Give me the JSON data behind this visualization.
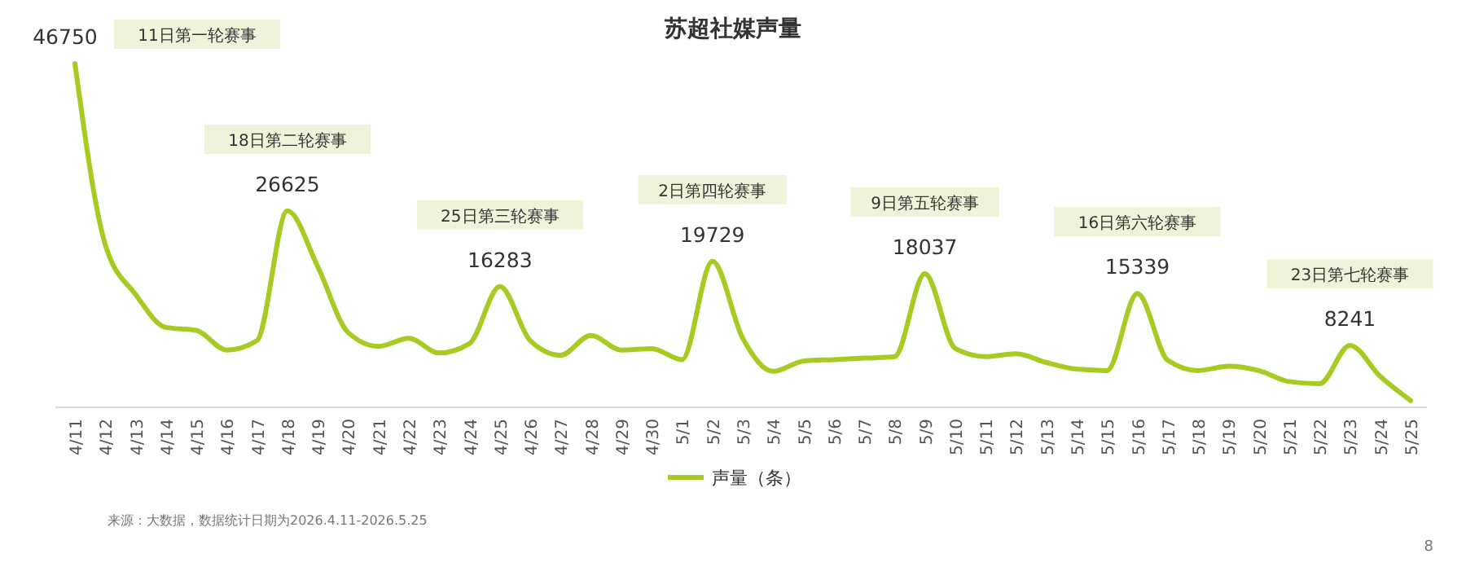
{
  "chart_data": {
    "type": "line",
    "title": "苏超社媒声量",
    "categories": [
      "4/11",
      "4/12",
      "4/13",
      "4/14",
      "4/15",
      "4/16",
      "4/17",
      "4/18",
      "4/19",
      "4/20",
      "4/21",
      "4/22",
      "4/23",
      "4/24",
      "4/25",
      "4/26",
      "4/27",
      "4/28",
      "4/29",
      "4/30",
      "5/1",
      "5/2",
      "5/3",
      "5/4",
      "5/5",
      "5/6",
      "5/7",
      "5/8",
      "5/9",
      "5/10",
      "5/11",
      "5/12",
      "5/13",
      "5/14",
      "5/15",
      "5/16",
      "5/17",
      "5/18",
      "5/19",
      "5/20",
      "5/21",
      "5/22",
      "5/23",
      "5/24",
      "5/25"
    ],
    "series": [
      {
        "name": "声量（条）",
        "color": "#a9c923",
        "values": [
          46750,
          22000,
          15200,
          10700,
          10300,
          7600,
          8900,
          26625,
          19000,
          10000,
          8100,
          9200,
          7200,
          8500,
          16283,
          8900,
          6900,
          9600,
          7600,
          7800,
          6300,
          19729,
          9200,
          4700,
          6100,
          6300,
          6500,
          6700,
          18037,
          7800,
          6700,
          7100,
          5900,
          5000,
          4800,
          15339,
          6200,
          4800,
          5400,
          4800,
          3300,
          3000,
          8241,
          4000,
          700
        ],
        "value_labels": [
          "46750",
          null,
          null,
          null,
          null,
          null,
          null,
          "26625",
          null,
          null,
          null,
          null,
          null,
          null,
          "16283",
          null,
          null,
          null,
          null,
          null,
          null,
          "19729",
          null,
          null,
          null,
          null,
          null,
          null,
          "18037",
          null,
          null,
          null,
          null,
          null,
          null,
          "15339",
          null,
          null,
          null,
          null,
          null,
          null,
          "8241",
          null,
          null
        ]
      }
    ],
    "annotations": [
      "11日第一轮赛事",
      "18日第二轮赛事",
      "25日第三轮赛事",
      "2日第四轮赛事",
      "9日第五轮赛事",
      "16日第六轮赛事",
      "23日第七轮赛事",
      "来源：大数据，数据统计日期为2026.4.11-2026.5.25",
      "8"
    ],
    "legend": "bottom",
    "marker": "none",
    "line_style": "solid",
    "tick_labels": "x"
  }
}
